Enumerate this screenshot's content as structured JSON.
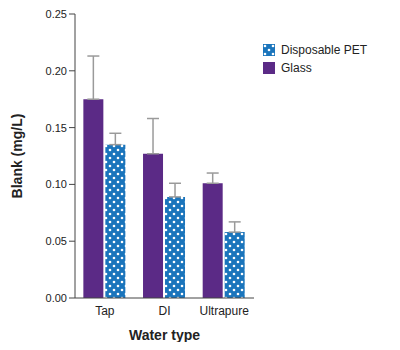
{
  "chart_data": {
    "type": "bar",
    "x_label": "Water type",
    "y_label": "Blank (mg/L)",
    "categories": [
      "Tap",
      "DI",
      "Ultrapure"
    ],
    "series": [
      {
        "name": "Glass",
        "color": "#5b2a86",
        "values": [
          0.175,
          0.127,
          0.101
        ],
        "errors": [
          0.038,
          0.031,
          0.009
        ]
      },
      {
        "name": "Disposable PET",
        "color": "#1b75bc",
        "marker": "dots",
        "values": [
          0.135,
          0.089,
          0.058
        ],
        "errors": [
          0.01,
          0.012,
          0.009
        ]
      }
    ],
    "ylim": [
      0,
      0.25
    ],
    "yticks": [
      {
        "value": 0,
        "label": "0.00"
      },
      {
        "value": 0.05,
        "label": "0.05"
      },
      {
        "value": 0.1,
        "label": "0.10"
      },
      {
        "value": 0.15,
        "label": "0.15"
      },
      {
        "value": 0.2,
        "label": "0.20"
      },
      {
        "value": 0.25,
        "label": "0.25"
      }
    ],
    "legend": "upper right"
  }
}
